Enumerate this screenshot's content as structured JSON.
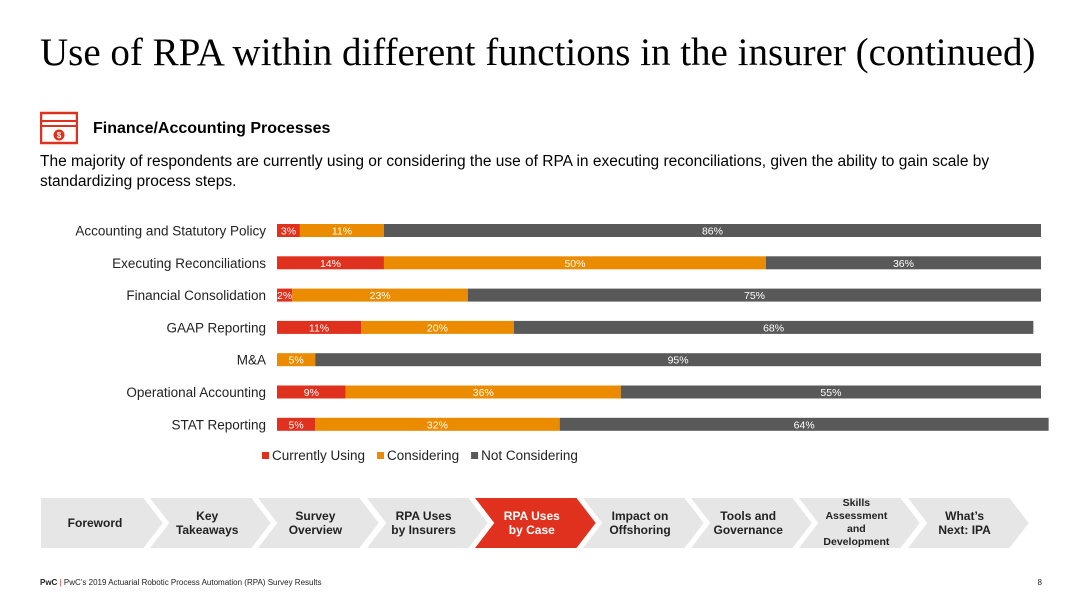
{
  "page": {
    "title": "Use of RPA within different functions in the insurer (continued)",
    "section_title": "Finance/Accounting Processes",
    "section_icon": "money-bill-icon",
    "summary": "The majority of respondents are currently using or considering the use of RPA in executing reconciliations, given the ability to gain scale by standardizing process steps."
  },
  "chart_data": {
    "type": "bar",
    "orientation": "horizontal",
    "stacked": true,
    "title": "",
    "xlabel": "",
    "ylabel": "",
    "xlim": [
      0,
      100
    ],
    "legend_position": "bottom",
    "categories": [
      "Accounting and Statutory Policy",
      "Executing Reconciliations",
      "Financial Consolidation",
      "GAAP Reporting",
      "M&A",
      "Operational Accounting",
      "STAT Reporting"
    ],
    "series": [
      {
        "name": "Currently Using",
        "color": "#e0301e",
        "values": [
          3,
          14,
          2,
          11,
          0,
          9,
          5
        ]
      },
      {
        "name": "Considering",
        "color": "#eb8c00",
        "values": [
          11,
          50,
          23,
          20,
          5,
          36,
          32
        ]
      },
      {
        "name": "Not Considering",
        "color": "#595959",
        "values": [
          86,
          36,
          75,
          68,
          95,
          55,
          64
        ]
      }
    ]
  },
  "nav": {
    "items": [
      {
        "label": "Foreword",
        "active": false
      },
      {
        "label": "Key\nTakeaways",
        "active": false
      },
      {
        "label": "Survey\nOverview",
        "active": false
      },
      {
        "label": "RPA Uses\nby Insurers",
        "active": false
      },
      {
        "label": "RPA Uses\nby Case",
        "active": true
      },
      {
        "label": "Impact on\nOffshoring",
        "active": false
      },
      {
        "label": "Tools and\nGovernance",
        "active": false
      },
      {
        "label": "Skills\nAssessment\nand\nDevelopment",
        "active": false
      },
      {
        "label": "What’s\nNext: IPA",
        "active": false
      }
    ],
    "colors": {
      "inactive": "#e6e6e6",
      "active": "#e0301e"
    }
  },
  "footer": {
    "brand": "PwC",
    "separator": "|",
    "text": "PwC’s 2019 Actuarial Robotic Process Automation (RPA) Survey Results",
    "page_number": "8"
  }
}
